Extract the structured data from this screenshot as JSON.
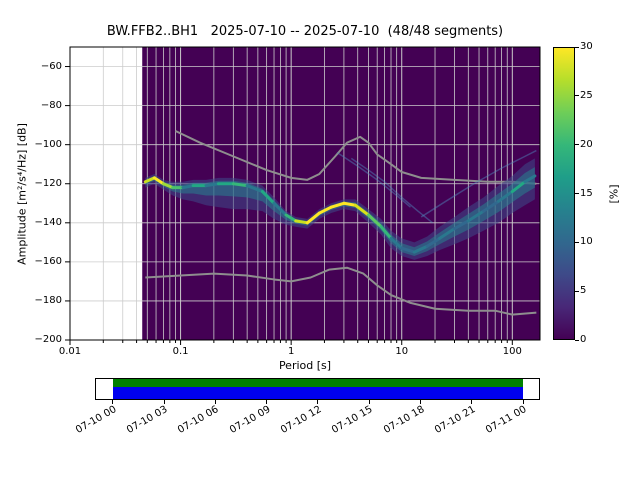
{
  "chart_data": {
    "type": "heatmap",
    "title": "BW.FFB2..BH1   2025-07-10 -- 2025-07-10  (48/48 segments)",
    "xlabel": "Period [s]",
    "ylabel": "Amplitude [m²/s⁴/Hz] [dB]",
    "colorbar_label": "[%]",
    "xlim": [
      0.01,
      178
    ],
    "ylim": [
      -200,
      -50
    ],
    "colorbar_range": [
      0,
      30
    ],
    "data_start_period": 0.045,
    "background_color": "#440154",
    "grid_color": "#cccccc",
    "noise_model_color": "#8e8e8e",
    "band_outer_color": "rgba(62,74,137,0.55)",
    "band_inner_color": "rgba(38,130,142,0.55)",
    "artifact_color": "rgba(80,140,190,0.45)",
    "viridis_stops": [
      "#440154",
      "#482878",
      "#3e4a89",
      "#31688e",
      "#26828e",
      "#1f9e89",
      "#35b779",
      "#6ece58",
      "#b5de2b",
      "#fde725"
    ],
    "x_ticks": [
      {
        "label": "0.01",
        "value": 0.01
      },
      {
        "label": "0.1",
        "value": 0.1
      },
      {
        "label": "1",
        "value": 1
      },
      {
        "label": "10",
        "value": 10
      },
      {
        "label": "100",
        "value": 100
      }
    ],
    "y_ticks": [
      {
        "label": "−60",
        "value": -60
      },
      {
        "label": "−80",
        "value": -80
      },
      {
        "label": "−100",
        "value": -100
      },
      {
        "label": "−120",
        "value": -120
      },
      {
        "label": "−140",
        "value": -140
      },
      {
        "label": "−160",
        "value": -160
      },
      {
        "label": "−180",
        "value": -180
      },
      {
        "label": "−200",
        "value": -200
      }
    ],
    "colorbar_ticks": [
      0,
      5,
      10,
      15,
      20,
      25,
      30
    ],
    "nhnm": [
      [
        0.09,
        -93
      ],
      [
        0.15,
        -99
      ],
      [
        0.3,
        -106
      ],
      [
        0.6,
        -113
      ],
      [
        1.0,
        -117
      ],
      [
        1.4,
        -118
      ],
      [
        1.8,
        -115
      ],
      [
        2.5,
        -106
      ],
      [
        3.2,
        -99
      ],
      [
        4.2,
        -96
      ],
      [
        5,
        -99
      ],
      [
        6,
        -105
      ],
      [
        8,
        -110
      ],
      [
        10,
        -114
      ],
      [
        15,
        -117
      ],
      [
        30,
        -118
      ],
      [
        60,
        -119
      ],
      [
        100,
        -119
      ],
      [
        165,
        -120
      ]
    ],
    "nlnm": [
      [
        0.048,
        -168
      ],
      [
        0.1,
        -167
      ],
      [
        0.2,
        -166
      ],
      [
        0.4,
        -167
      ],
      [
        0.7,
        -169
      ],
      [
        1.0,
        -170
      ],
      [
        1.5,
        -168
      ],
      [
        2.2,
        -164
      ],
      [
        3.2,
        -163
      ],
      [
        4.5,
        -166
      ],
      [
        6,
        -172
      ],
      [
        8,
        -177
      ],
      [
        12,
        -181
      ],
      [
        20,
        -184
      ],
      [
        40,
        -185
      ],
      [
        70,
        -185
      ],
      [
        100,
        -187
      ],
      [
        165,
        -186
      ]
    ],
    "ppsd_mode": [
      [
        0.048,
        -119,
        "#c8e020",
        2,
        3
      ],
      [
        0.058,
        -117,
        "#fde725",
        2,
        3
      ],
      [
        0.07,
        -120,
        "#a0da39",
        2,
        3
      ],
      [
        0.085,
        -122,
        "#4ac16d",
        3,
        4
      ],
      [
        0.105,
        -122,
        "#2a788e",
        3,
        6
      ],
      [
        0.13,
        -121,
        "#22a884",
        3,
        8
      ],
      [
        0.17,
        -121,
        "#2a788e",
        3,
        10
      ],
      [
        0.22,
        -120,
        "#22a884",
        3,
        12
      ],
      [
        0.3,
        -120,
        "#35b779",
        3,
        13
      ],
      [
        0.4,
        -121,
        "#2a788e",
        3,
        12
      ],
      [
        0.55,
        -124,
        "#22a884",
        3,
        10
      ],
      [
        0.7,
        -130,
        "#2a788e",
        3,
        8
      ],
      [
        0.9,
        -136,
        "#35b779",
        2,
        5
      ],
      [
        1.1,
        -139,
        "#c8e020",
        2,
        3
      ],
      [
        1.4,
        -140,
        "#fde725",
        2,
        3
      ],
      [
        1.8,
        -135,
        "#fde725",
        2,
        3
      ],
      [
        2.3,
        -132,
        "#fde725",
        2,
        3
      ],
      [
        3.0,
        -130,
        "#fde725",
        2,
        3
      ],
      [
        3.8,
        -131,
        "#d8e219",
        3,
        3
      ],
      [
        5.0,
        -136,
        "#5ec962",
        3,
        4
      ],
      [
        6.5,
        -142,
        "#35b779",
        4,
        4
      ],
      [
        8.0,
        -148,
        "#2a788e",
        4,
        5
      ],
      [
        10.0,
        -153,
        "#31688e",
        5,
        4
      ],
      [
        13.0,
        -155,
        "#2a788e",
        5,
        4
      ],
      [
        17.0,
        -152,
        "#31688e",
        5,
        5
      ],
      [
        22.0,
        -148,
        "#2a788e",
        6,
        6
      ],
      [
        30.0,
        -143,
        "#31688e",
        6,
        8
      ],
      [
        40.0,
        -139,
        "#2a788e",
        7,
        9
      ],
      [
        55.0,
        -134,
        "#31688e",
        7,
        10
      ],
      [
        75.0,
        -129,
        "#2a788e",
        8,
        11
      ],
      [
        100.0,
        -124,
        "#22a884",
        8,
        11
      ],
      [
        130.0,
        -119,
        "#2a788e",
        9,
        12
      ],
      [
        160.0,
        -116,
        "#22a884",
        9,
        12
      ]
    ],
    "artifact_lines": [
      [
        [
          3.5,
          -107
        ],
        [
          5,
          -113
        ],
        [
          7,
          -119
        ],
        [
          10,
          -127
        ],
        [
          14,
          -134
        ],
        [
          19,
          -140
        ]
      ],
      [
        [
          2.6,
          -104
        ],
        [
          4,
          -111
        ],
        [
          6,
          -118
        ],
        [
          9,
          -126
        ],
        [
          12,
          -132
        ]
      ],
      [
        [
          15,
          -137
        ],
        [
          25,
          -129
        ],
        [
          45,
          -120
        ],
        [
          80,
          -112
        ],
        [
          130,
          -106
        ],
        [
          165,
          -103
        ]
      ]
    ]
  },
  "timeline": {
    "labels": [
      "07-10 00",
      "07-10 03",
      "07-10 06",
      "07-10 09",
      "07-10 12",
      "07-10 15",
      "07-10 18",
      "07-10 21",
      "07-11 00"
    ],
    "coverage_start_frac": 0.04,
    "coverage_end_frac": 0.962,
    "top_color": "#008000",
    "bottom_color": "#0000ee"
  }
}
